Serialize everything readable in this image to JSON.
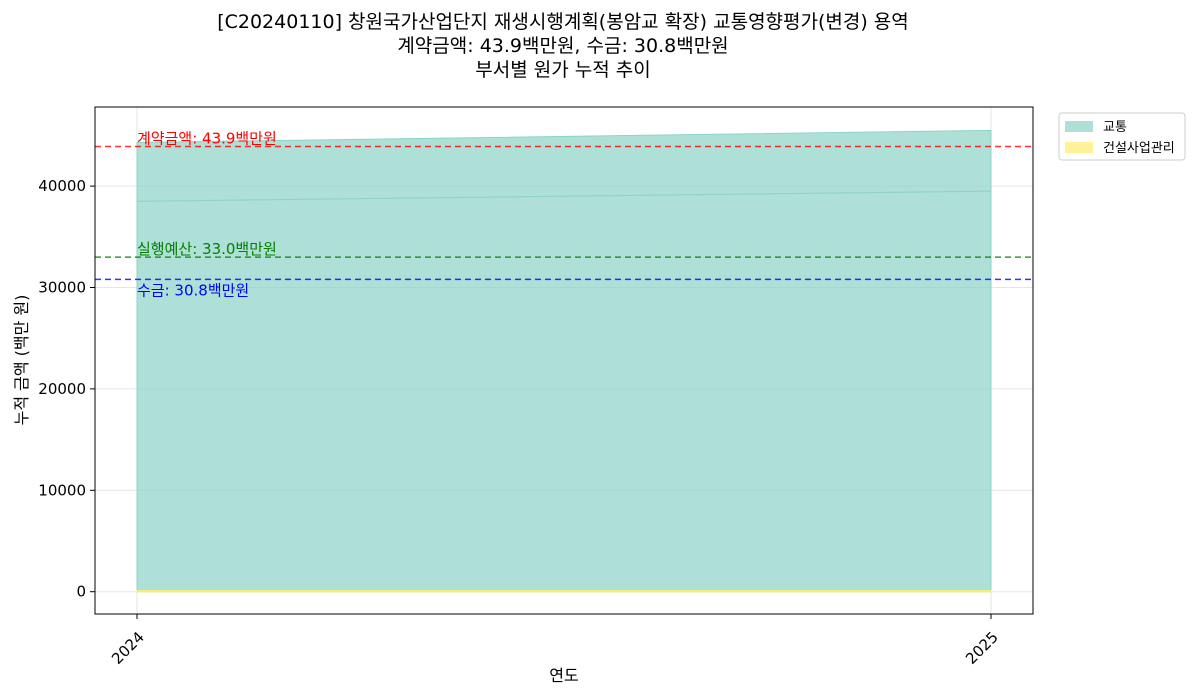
{
  "chart_data": {
    "type": "area",
    "title_lines": [
      "[C20240110] 창원국가산업단지 재생시행계획(봉암교 확장) 교통영향평가(변경) 용역",
      "계약금액: 43.9백만원, 수금: 30.8백만원",
      "부서별 원가 누적 추이"
    ],
    "xlabel": "연도",
    "ylabel": "누적 금액 (백만 원)",
    "x": [
      "2024",
      "2025"
    ],
    "ylim": [
      -2200,
      47800
    ],
    "yticks": [
      0,
      10000,
      20000,
      30000,
      40000
    ],
    "grid": true,
    "legend_position": "outside-top-right",
    "series": [
      {
        "name": "교통",
        "values": [
          44300,
          45500
        ],
        "color": "#8dd3c7",
        "alpha": 0.7
      },
      {
        "name": "건설사업관리",
        "values": [
          100,
          100
        ],
        "color": "#ffed6f",
        "alpha": 0.7
      }
    ],
    "inner_line": {
      "values": [
        38500,
        39500
      ],
      "color": "#8dd3c7"
    },
    "reference_lines": [
      {
        "label": "계약금액: 43.9백만원",
        "value": 43900,
        "color": "#ff0000",
        "label_pos": "above"
      },
      {
        "label": "실행예산: 33.0백만원",
        "value": 33000,
        "color": "#008000",
        "label_pos": "above"
      },
      {
        "label": "수금: 30.8백만원",
        "value": 30800,
        "color": "#0000ff",
        "label_pos": "below"
      }
    ]
  }
}
